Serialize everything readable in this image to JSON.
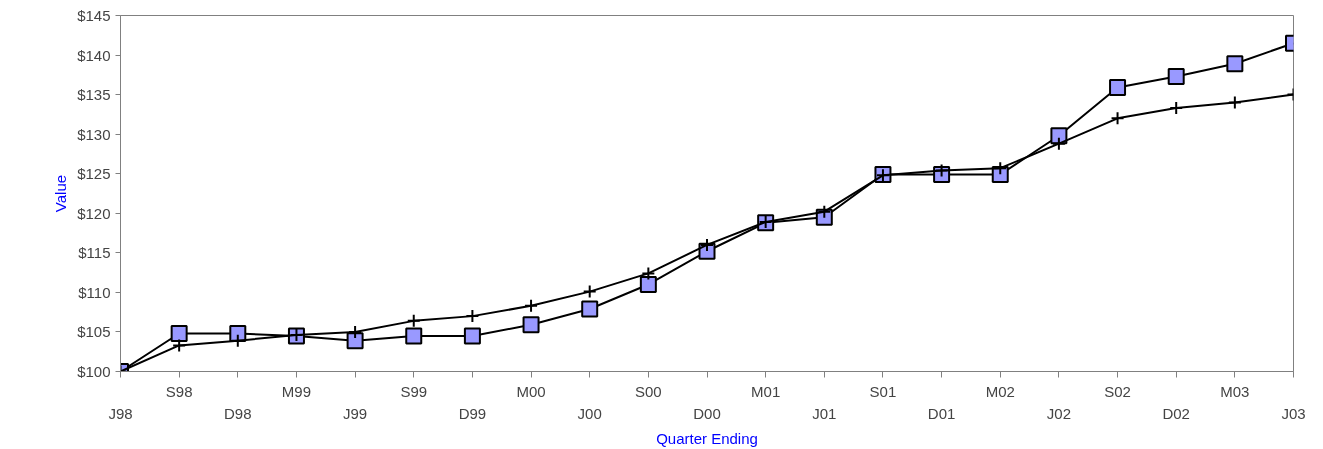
{
  "chart_data": {
    "type": "line",
    "xlabel": "Quarter Ending",
    "ylabel": "Value",
    "categories": [
      "J98",
      "S98",
      "D98",
      "M99",
      "J99",
      "S99",
      "D99",
      "M00",
      "J00",
      "S00",
      "D00",
      "M01",
      "J01",
      "S01",
      "D01",
      "M02",
      "J02",
      "S02",
      "D02",
      "M03",
      "J03"
    ],
    "series": [
      {
        "color": "#9999ff",
        "marker": "square",
        "values": [
          100,
          104.8,
          104.8,
          104.5,
          103.9,
          104.5,
          104.5,
          105.9,
          107.9,
          111,
          115.2,
          118.8,
          119.5,
          124.9,
          124.9,
          124.9,
          129.8,
          135.9,
          137.3,
          138.9,
          141.5
        ]
      },
      {
        "color": "#000000",
        "marker": "cross",
        "values": [
          100,
          103.3,
          103.9,
          104.6,
          105,
          106.4,
          107,
          108.3,
          110.1,
          112.4,
          116,
          118.9,
          120.2,
          124.8,
          125.4,
          125.7,
          128.8,
          132,
          133.3,
          134,
          135
        ]
      }
    ],
    "ylim": [
      100,
      145
    ],
    "yticks": [
      {
        "value": 100,
        "label": "$100"
      },
      {
        "value": 105,
        "label": "$105"
      },
      {
        "value": 110,
        "label": "$110"
      },
      {
        "value": 115,
        "label": "$115"
      },
      {
        "value": 120,
        "label": "$120"
      },
      {
        "value": 125,
        "label": "$125"
      },
      {
        "value": 130,
        "label": "$130"
      },
      {
        "value": 135,
        "label": "$135"
      },
      {
        "value": 140,
        "label": "$140"
      },
      {
        "value": 145,
        "label": "$145"
      }
    ],
    "grid": false
  }
}
